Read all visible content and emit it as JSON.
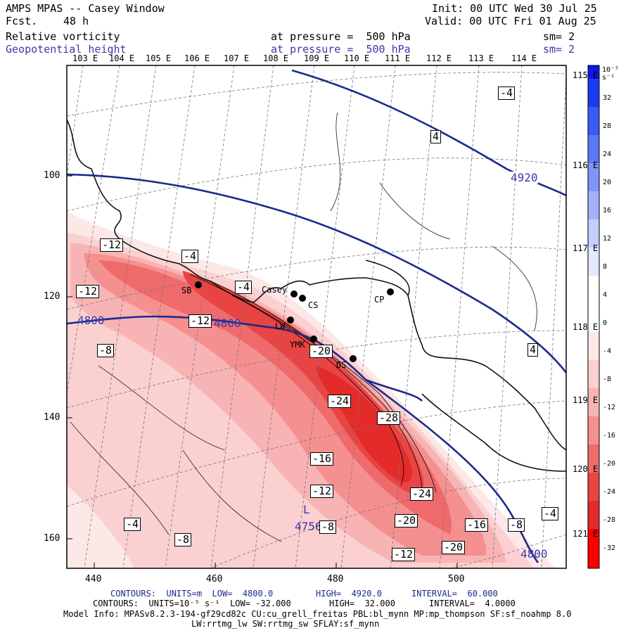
{
  "header": {
    "model": "AMPS MPAS -- Casey Window",
    "fcst_label": "Fcst.",
    "fcst_value": "48 h",
    "init": "Init: 00 UTC Wed 30 Jul 25",
    "valid": "Valid: 00 UTC Fri 01 Aug 25",
    "field1": "Relative vorticity",
    "field1_level": "at pressure =  500 hPa",
    "field1_sm": "sm= 2",
    "field2": "Geopotential height",
    "field2_level": "at pressure =  500 hPa",
    "field2_sm": "sm= 2"
  },
  "colors": {
    "geopotential": "#1a2a8c",
    "vorticity_max": "#ff1a1a",
    "coast": "#000000"
  },
  "axes": {
    "top_lon": [
      "103 E",
      "104 E",
      "105 E",
      "106 E",
      "107 E",
      "108 E",
      "109 E",
      "110 E",
      "111 E",
      "112 E",
      "113 E",
      "114 E"
    ],
    "right_lon": [
      "115 E",
      "116 E",
      "117 E",
      "118 E",
      "119 E",
      "120 E",
      "121 E"
    ],
    "y_ticks": [
      "100",
      "120",
      "140",
      "160"
    ],
    "x_ticks": [
      "440",
      "460",
      "480",
      "500"
    ]
  },
  "stations": [
    {
      "name": "Casey"
    },
    {
      "name": "CS"
    },
    {
      "name": "CP"
    },
    {
      "name": "SB"
    },
    {
      "name": "LW"
    },
    {
      "name": "YMK"
    },
    {
      "name": "DS"
    }
  ],
  "labels": {
    "vort": [
      "-12",
      "-4",
      "-12",
      "-4",
      "-12",
      "-8",
      "-20",
      "-24",
      "-28",
      "-16",
      "-12",
      "-24",
      "-20",
      "-16",
      "-8",
      "-4",
      "-4",
      "-8",
      "-12",
      "-20",
      "-4",
      "4",
      "4"
    ],
    "height_4920": "4920",
    "height_4800_left": "4800",
    "height_4800_mid": "4800",
    "height_4800_right": "4800",
    "low_letter": "L",
    "low_value": "4756",
    "low_box": "-8"
  },
  "colorbar": {
    "units": "10⁻⁵ s⁻¹",
    "ticks": [
      "32",
      "28",
      "24",
      "20",
      "16",
      "12",
      "8",
      "4",
      "0",
      "-4",
      "-8",
      "-12",
      "-16",
      "-20",
      "-24",
      "-28",
      "-32"
    ]
  },
  "footer": {
    "line1_a": "CONTOURS:  UNITS=m  LOW=  4800.0",
    "line1_b": "HIGH=  4920.0",
    "line1_c": "INTERVAL=  60.000",
    "line2_a": "CONTOURS:  UNITS=10⁻⁵ s⁻¹  LOW= -32.000",
    "line2_b": "HIGH=  32.000",
    "line2_c": "INTERVAL=  4.0000",
    "line3": "Model Info: MPASv8.2.3-194-gf29cd82c CU:cu_grell_freitas PBL:bl_mynn MP:mp_thompson SF:sf_noahmp 8.0",
    "line4": "LW:rrtmg_lw SW:rrtmg_sw SFLAY:sf_mynn"
  }
}
